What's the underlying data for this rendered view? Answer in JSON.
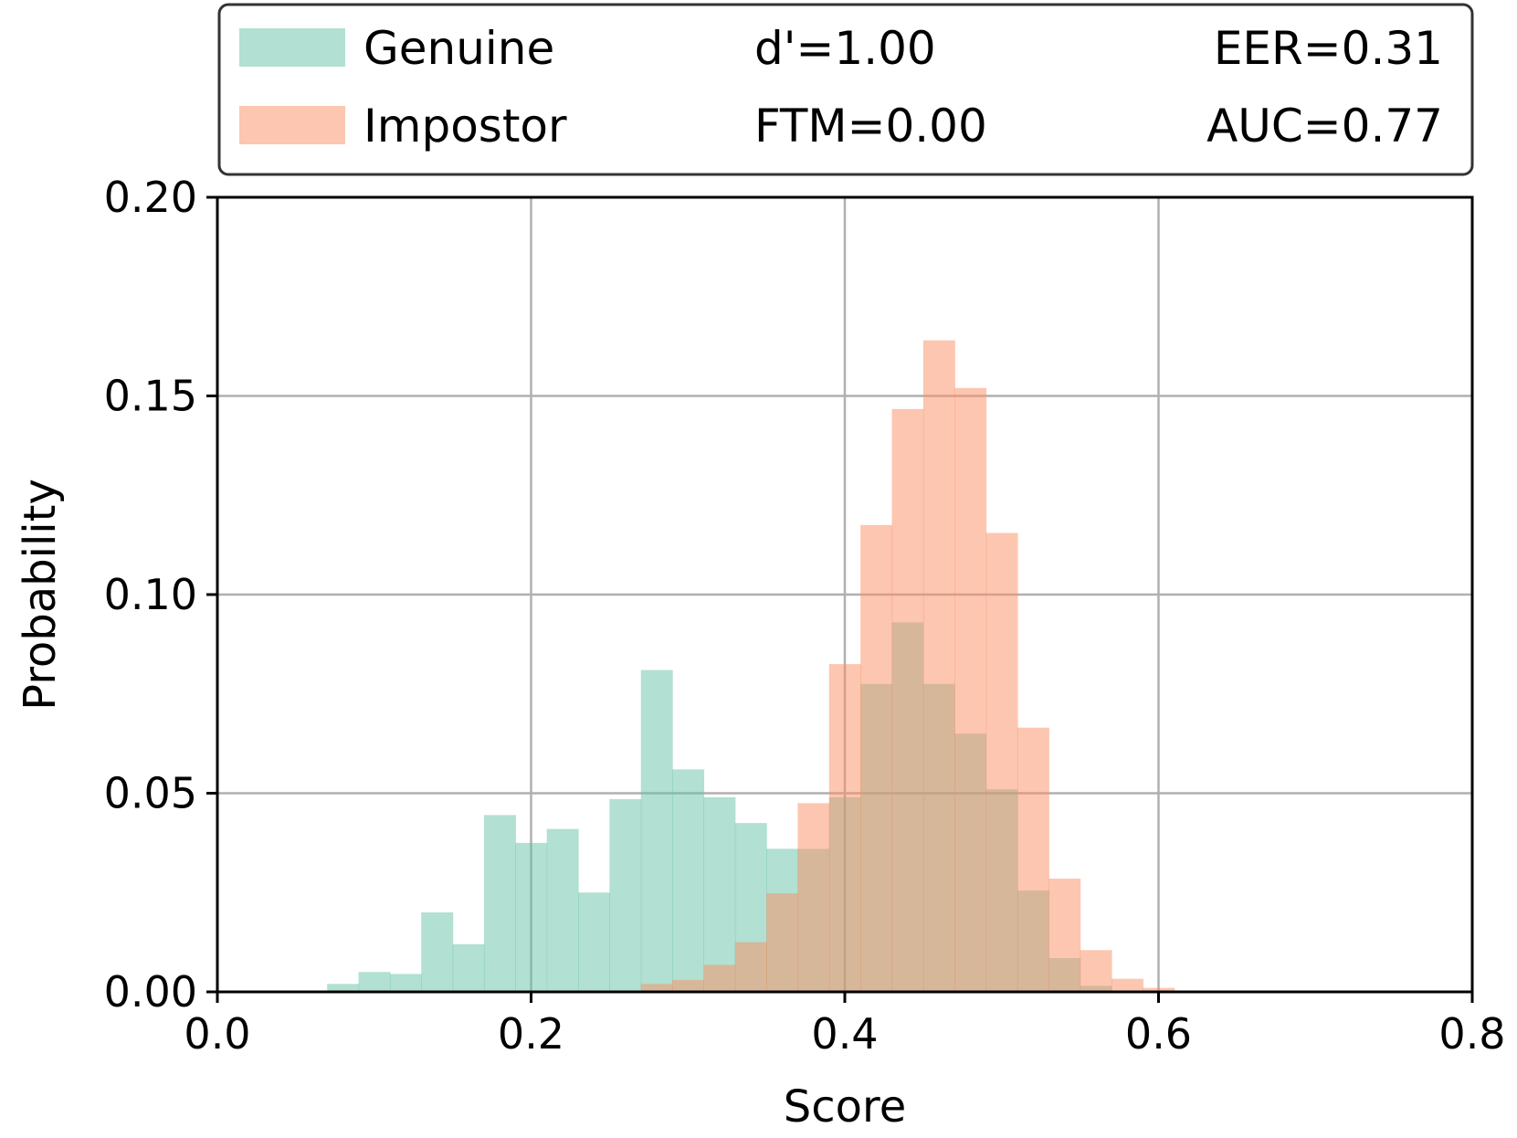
{
  "chart_data": {
    "type": "bar",
    "subtype": "overlapping-histogram",
    "title": "",
    "xlabel": "Score",
    "ylabel": "Probability",
    "xlim": [
      0.0,
      0.8
    ],
    "ylim": [
      0.0,
      0.2
    ],
    "xticks": [
      "0.0",
      "0.2",
      "0.4",
      "0.6",
      "0.8"
    ],
    "xtick_values": [
      0.0,
      0.2,
      0.4,
      0.6,
      0.8
    ],
    "yticks": [
      "0.00",
      "0.05",
      "0.10",
      "0.15",
      "0.20"
    ],
    "ytick_values": [
      0.0,
      0.05,
      0.1,
      0.15,
      0.2
    ],
    "grid": true,
    "legend_position": "top",
    "series": [
      {
        "name": "Genuine",
        "color": "#66c2a5",
        "opacity": 0.5,
        "bins": [
          [
            0.07,
            0.09,
            0.002
          ],
          [
            0.09,
            0.11,
            0.005
          ],
          [
            0.11,
            0.13,
            0.0045
          ],
          [
            0.13,
            0.15,
            0.02
          ],
          [
            0.15,
            0.17,
            0.012
          ],
          [
            0.17,
            0.19,
            0.0445
          ],
          [
            0.19,
            0.21,
            0.0375
          ],
          [
            0.21,
            0.23,
            0.041
          ],
          [
            0.23,
            0.25,
            0.025
          ],
          [
            0.25,
            0.27,
            0.0485
          ],
          [
            0.27,
            0.29,
            0.081
          ],
          [
            0.29,
            0.31,
            0.056
          ],
          [
            0.31,
            0.33,
            0.049
          ],
          [
            0.33,
            0.35,
            0.0425
          ],
          [
            0.35,
            0.37,
            0.036
          ],
          [
            0.37,
            0.39,
            0.036
          ],
          [
            0.39,
            0.41,
            0.049
          ],
          [
            0.41,
            0.43,
            0.0775
          ],
          [
            0.43,
            0.45,
            0.093
          ],
          [
            0.45,
            0.47,
            0.0775
          ],
          [
            0.47,
            0.49,
            0.065
          ],
          [
            0.49,
            0.51,
            0.051
          ],
          [
            0.51,
            0.53,
            0.0255
          ],
          [
            0.53,
            0.55,
            0.0085
          ],
          [
            0.55,
            0.57,
            0.0015
          ]
        ]
      },
      {
        "name": "Impostor",
        "color": "#fc8d62",
        "opacity": 0.5,
        "bins": [
          [
            0.27,
            0.29,
            0.002
          ],
          [
            0.29,
            0.31,
            0.003
          ],
          [
            0.31,
            0.33,
            0.0068
          ],
          [
            0.33,
            0.35,
            0.0125
          ],
          [
            0.35,
            0.37,
            0.0248
          ],
          [
            0.37,
            0.39,
            0.0475
          ],
          [
            0.39,
            0.41,
            0.0825
          ],
          [
            0.41,
            0.43,
            0.1175
          ],
          [
            0.43,
            0.45,
            0.1467
          ],
          [
            0.45,
            0.47,
            0.164
          ],
          [
            0.47,
            0.49,
            0.152
          ],
          [
            0.49,
            0.51,
            0.1155
          ],
          [
            0.51,
            0.53,
            0.0665
          ],
          [
            0.53,
            0.55,
            0.0285
          ],
          [
            0.55,
            0.57,
            0.0105
          ],
          [
            0.57,
            0.59,
            0.0033
          ],
          [
            0.59,
            0.61,
            0.001
          ]
        ]
      }
    ],
    "legend": {
      "entries": [
        {
          "label": "Genuine",
          "stat1": "d'=1.00",
          "stat2": "EER=0.31"
        },
        {
          "label": "Impostor",
          "stat1": "FTM=0.00",
          "stat2": "AUC=0.77"
        }
      ]
    }
  }
}
